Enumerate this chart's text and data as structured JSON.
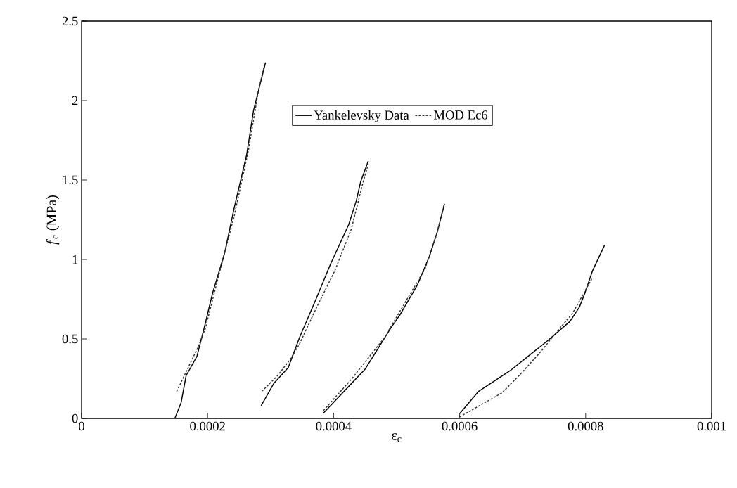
{
  "chart_data": {
    "type": "line",
    "xlabel": "ε$_{c}$",
    "ylabel": "*f*$_{c}$ (MPa)",
    "series": [
      {
        "name": "Yankelevsky Data",
        "color": "#000000",
        "line_style": "solid",
        "x": [
          0.000148,
          0.000158,
          0.000166,
          0.000183,
          0.000194,
          0.000208,
          0.000227,
          0.000242,
          0.000262,
          0.000273,
          0.000292,
          null,
          0.000285,
          0.000305,
          0.000328,
          0.000346,
          0.000372,
          0.000395,
          0.000424,
          0.000436,
          0.000443,
          0.000455,
          null,
          0.000383,
          0.00045,
          0.000491,
          0.000505,
          0.000533,
          0.000552,
          0.000565,
          0.000576,
          null,
          0.0006,
          0.00063,
          0.00068,
          0.00074,
          0.000775,
          0.00079,
          0.000798,
          0.000811,
          0.00083
        ],
        "values": [
          0,
          0.1,
          0.27,
          0.39,
          0.56,
          0.79,
          1.04,
          1.32,
          1.66,
          1.94,
          2.24,
          null,
          0.08,
          0.22,
          0.32,
          0.51,
          0.75,
          0.97,
          1.22,
          1.37,
          1.49,
          1.62,
          null,
          0.03,
          0.31,
          0.57,
          0.65,
          0.84,
          1.02,
          1.18,
          1.35,
          null,
          0.03,
          0.17,
          0.3,
          0.49,
          0.61,
          0.7,
          0.78,
          0.93,
          1.09
        ]
      },
      {
        "name": "MOD Ec6",
        "color": "#333333",
        "line_style": "dotted",
        "x": [
          0.000151,
          0.000185,
          0.000196,
          0.000219,
          0.000242,
          0.000265,
          0.000281,
          0.00029,
          null,
          0.000286,
          0.000309,
          0.000331,
          0.000346,
          0.000372,
          0.000402,
          0.000428,
          0.000447,
          0.000455,
          null,
          0.000384,
          0.000429,
          0.000481,
          0.000515,
          0.000545,
          0.000563,
          0.000575,
          null,
          0.0006,
          0.000667,
          0.000697,
          0.000731,
          0.000753,
          0.000779,
          0.00081
        ],
        "values": [
          0.17,
          0.45,
          0.56,
          0.92,
          1.27,
          1.69,
          2.07,
          2.22,
          null,
          0.17,
          0.26,
          0.37,
          0.47,
          0.69,
          0.93,
          1.19,
          1.49,
          1.6,
          null,
          0.05,
          0.25,
          0.51,
          0.74,
          0.94,
          1.15,
          1.34,
          null,
          0.01,
          0.16,
          0.28,
          0.43,
          0.54,
          0.66,
          0.88
        ]
      }
    ],
    "xlim": [
      0,
      0.001
    ],
    "ylim": [
      0,
      2.5
    ],
    "xticks": [
      0,
      0.0002,
      0.0004,
      0.0006,
      0.0008,
      0.001
    ],
    "yticks": [
      0,
      0.5,
      1,
      1.5,
      2,
      2.5
    ],
    "legend": "top right",
    "grid": false
  }
}
